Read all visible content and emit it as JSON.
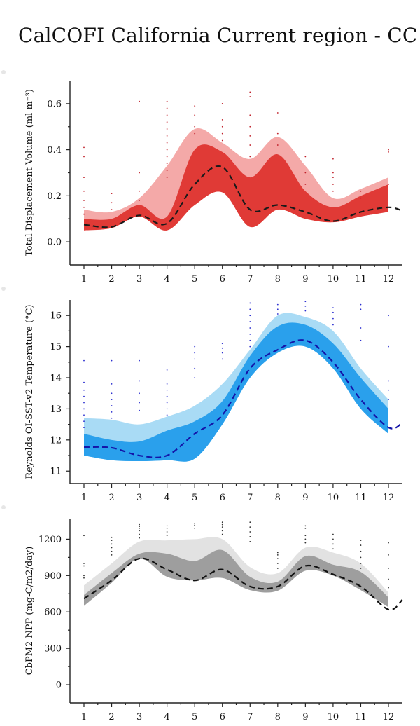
{
  "title": "CalCOFI California Current region - CC",
  "colors": {
    "tdv_outer": "#f4a9a8",
    "tdv_inner": "#e03a36",
    "tdv_points": "#c0202a",
    "tdv_line": "#1a1a1a",
    "sst_outer": "#a9dbf5",
    "sst_inner": "#2aa0ec",
    "sst_points": "#2b2fd0",
    "sst_line": "#1414a8",
    "npp_outer": "#e2e2e2",
    "npp_inner": "#9e9e9e",
    "npp_points": "#333333",
    "npp_line": "#111111"
  },
  "chart_data": [
    {
      "type": "area",
      "ylabel": "Total Displacement Volume (ml m⁻³)",
      "x": [
        1,
        2,
        3,
        4,
        5,
        6,
        7,
        8,
        9,
        10,
        11,
        12
      ],
      "xlim": [
        0.7,
        12.5
      ],
      "ylim": [
        -0.1,
        0.7
      ],
      "yticks": [
        0.0,
        0.2,
        0.4,
        0.6
      ],
      "ytick_labels": [
        "0.0",
        "0.2",
        "0.4",
        "0.6"
      ],
      "xtick_labels": [
        "1",
        "2",
        "3",
        "4",
        "5",
        "6",
        "7",
        "8",
        "9",
        "10",
        "11",
        "12"
      ],
      "grid": false,
      "line_style": "dashed",
      "mean": [
        0.075,
        0.065,
        0.115,
        0.08,
        0.25,
        0.325,
        0.14,
        0.16,
        0.13,
        0.09,
        0.13,
        0.15
      ],
      "mean_ext_x": 12.5,
      "mean_ext_y": 0.135,
      "inner_low": [
        0.05,
        0.06,
        0.11,
        0.05,
        0.16,
        0.215,
        0.065,
        0.14,
        0.1,
        0.085,
        0.11,
        0.13
      ],
      "inner_high": [
        0.1,
        0.1,
        0.16,
        0.11,
        0.4,
        0.39,
        0.28,
        0.38,
        0.22,
        0.15,
        0.2,
        0.25
      ],
      "outer_low": [
        0.05,
        0.06,
        0.11,
        0.05,
        0.16,
        0.215,
        0.065,
        0.14,
        0.1,
        0.085,
        0.11,
        0.13
      ],
      "outer_high": [
        0.14,
        0.13,
        0.19,
        0.33,
        0.49,
        0.43,
        0.36,
        0.455,
        0.33,
        0.19,
        0.23,
        0.28
      ],
      "points": [
        [
          1,
          0.41
        ],
        [
          1,
          0.37
        ],
        [
          1,
          0.28
        ],
        [
          1,
          0.22
        ],
        [
          1,
          0.18
        ],
        [
          1,
          0.15
        ],
        [
          1,
          0.12
        ],
        [
          2,
          0.21
        ],
        [
          2,
          0.17
        ],
        [
          2,
          0.14
        ],
        [
          3,
          0.61
        ],
        [
          3,
          0.3
        ],
        [
          3,
          0.22
        ],
        [
          3,
          0.18
        ],
        [
          4,
          0.61
        ],
        [
          4,
          0.58
        ],
        [
          4,
          0.55
        ],
        [
          4,
          0.52
        ],
        [
          4,
          0.49
        ],
        [
          4,
          0.46
        ],
        [
          4,
          0.43
        ],
        [
          4,
          0.4
        ],
        [
          4,
          0.37
        ],
        [
          4,
          0.34
        ],
        [
          4,
          0.31
        ],
        [
          4,
          0.28
        ],
        [
          5,
          0.59
        ],
        [
          5,
          0.55
        ],
        [
          5,
          0.5
        ],
        [
          5,
          0.47
        ],
        [
          6,
          0.6
        ],
        [
          6,
          0.53
        ],
        [
          6,
          0.5
        ],
        [
          6,
          0.47
        ],
        [
          6,
          0.44
        ],
        [
          7,
          0.65
        ],
        [
          7,
          0.63
        ],
        [
          7,
          0.55
        ],
        [
          7,
          0.5
        ],
        [
          7,
          0.46
        ],
        [
          7,
          0.42
        ],
        [
          7,
          0.37
        ],
        [
          8,
          0.56
        ],
        [
          8,
          0.47
        ],
        [
          8,
          0.42
        ],
        [
          9,
          0.37
        ],
        [
          9,
          0.3
        ],
        [
          9,
          0.25
        ],
        [
          10,
          0.36
        ],
        [
          10,
          0.3
        ],
        [
          10,
          0.28
        ],
        [
          10,
          0.25
        ],
        [
          10,
          0.22
        ],
        [
          11,
          0.22
        ],
        [
          11,
          0.19
        ],
        [
          12,
          0.4
        ],
        [
          12,
          0.39
        ],
        [
          12,
          0.25
        ]
      ]
    },
    {
      "type": "area",
      "ylabel": "Reynolds OI-SST-v2 Temperature (°C)",
      "x": [
        1,
        2,
        3,
        4,
        5,
        6,
        7,
        8,
        9,
        10,
        11,
        12
      ],
      "xlim": [
        0.7,
        12.5
      ],
      "ylim": [
        10.6,
        16.5
      ],
      "yticks": [
        11,
        12,
        13,
        14,
        15,
        16
      ],
      "ytick_labels": [
        "11",
        "12",
        "13",
        "14",
        "15",
        "16"
      ],
      "xtick_labels": [
        "1",
        "2",
        "3",
        "4",
        "5",
        "6",
        "7",
        "8",
        "9",
        "10",
        "11",
        "12"
      ],
      "grid": false,
      "line_style": "dashed",
      "mean": [
        11.77,
        11.75,
        11.5,
        11.5,
        12.2,
        12.8,
        14.3,
        14.9,
        15.2,
        14.5,
        13.3,
        12.4
      ],
      "mean_ext_x": 12.5,
      "mean_ext_y": 12.55,
      "inner_low": [
        11.5,
        11.35,
        11.32,
        11.35,
        11.4,
        12.5,
        14.0,
        14.8,
        15.0,
        14.3,
        13.0,
        12.2
      ],
      "inner_high": [
        12.2,
        12.0,
        11.95,
        12.3,
        12.6,
        13.25,
        14.7,
        15.65,
        15.7,
        15.1,
        14.0,
        13.0
      ],
      "outer_low": [
        11.5,
        11.35,
        11.32,
        11.35,
        11.4,
        12.5,
        14.0,
        14.8,
        15.0,
        14.3,
        13.0,
        12.2
      ],
      "outer_high": [
        12.7,
        12.65,
        12.5,
        12.75,
        13.1,
        13.8,
        14.9,
        16.0,
        15.95,
        15.5,
        14.3,
        13.3
      ],
      "points": [
        [
          1,
          14.55
        ],
        [
          1,
          13.85
        ],
        [
          1,
          13.6
        ],
        [
          1,
          13.4
        ],
        [
          1,
          13.2
        ],
        [
          1,
          13.0
        ],
        [
          1,
          12.8
        ],
        [
          1,
          12.6
        ],
        [
          1,
          12.4
        ],
        [
          2,
          14.55
        ],
        [
          2,
          13.8
        ],
        [
          2,
          13.5
        ],
        [
          2,
          13.3
        ],
        [
          2,
          13.1
        ],
        [
          2,
          12.9
        ],
        [
          2,
          12.7
        ],
        [
          3,
          14.55
        ],
        [
          3,
          13.9
        ],
        [
          3,
          13.5
        ],
        [
          3,
          13.2
        ],
        [
          3,
          12.95
        ],
        [
          4,
          14.25
        ],
        [
          4,
          13.8
        ],
        [
          4,
          13.6
        ],
        [
          4,
          13.4
        ],
        [
          4,
          13.2
        ],
        [
          4,
          13.0
        ],
        [
          4,
          12.8
        ],
        [
          5,
          15.0
        ],
        [
          5,
          14.8
        ],
        [
          5,
          14.6
        ],
        [
          5,
          14.3
        ],
        [
          5,
          14.0
        ],
        [
          6,
          15.1
        ],
        [
          6,
          14.95
        ],
        [
          6,
          14.8
        ],
        [
          6,
          14.6
        ],
        [
          7,
          16.4
        ],
        [
          7,
          16.2
        ],
        [
          7,
          16.0
        ],
        [
          7,
          15.8
        ],
        [
          7,
          15.6
        ],
        [
          7,
          15.4
        ],
        [
          7,
          15.2
        ],
        [
          7,
          15.0
        ],
        [
          8,
          16.35
        ],
        [
          8,
          16.2
        ],
        [
          8,
          16.05
        ],
        [
          9,
          16.45
        ],
        [
          9,
          16.3
        ],
        [
          9,
          16.15
        ],
        [
          10,
          16.25
        ],
        [
          10,
          16.1
        ],
        [
          10,
          15.9
        ],
        [
          10,
          15.7
        ],
        [
          11,
          16.35
        ],
        [
          11,
          16.2
        ],
        [
          11,
          15.6
        ],
        [
          11,
          15.2
        ],
        [
          12,
          16.0
        ],
        [
          12,
          15.0
        ],
        [
          12,
          13.9
        ],
        [
          12,
          13.6
        ],
        [
          12,
          13.3
        ]
      ]
    },
    {
      "type": "area",
      "ylabel": "CbPM2 NPP (mg-C/m2/day)",
      "x": [
        1,
        2,
        3,
        4,
        5,
        6,
        7,
        8,
        9,
        10,
        11,
        12
      ],
      "xlim": [
        0.7,
        12.5
      ],
      "ylim": [
        -150,
        1370
      ],
      "yticks": [
        0,
        300,
        600,
        900,
        1200
      ],
      "ytick_labels": [
        "0",
        "300",
        "600",
        "900",
        "1200"
      ],
      "xtick_labels": [
        "1",
        "2",
        "3",
        "4",
        "5",
        "6",
        "7",
        "8",
        "9",
        "10",
        "11",
        "12"
      ],
      "grid": false,
      "line_style": "dashed",
      "mean": [
        710,
        860,
        1040,
        950,
        860,
        950,
        810,
        810,
        980,
        910,
        810,
        620
      ],
      "mean_ext_x": 12.5,
      "mean_ext_y": 700,
      "inner_low": [
        650,
        840,
        1040,
        890,
        860,
        880,
        780,
        775,
        940,
        900,
        780,
        640
      ],
      "inner_high": [
        740,
        920,
        1080,
        1080,
        1020,
        1110,
        890,
        850,
        1060,
        990,
        930,
        720
      ],
      "outer_low": [
        650,
        840,
        1040,
        890,
        860,
        880,
        780,
        775,
        940,
        900,
        780,
        640
      ],
      "outer_high": [
        820,
        1000,
        1180,
        1190,
        1200,
        1200,
        970,
        920,
        1130,
        1090,
        1000,
        760
      ],
      "points": [
        [
          1,
          1230
        ],
        [
          1,
          1000
        ],
        [
          1,
          980
        ],
        [
          1,
          900
        ],
        [
          1,
          880
        ],
        [
          2,
          1215
        ],
        [
          2,
          1190
        ],
        [
          2,
          1160
        ],
        [
          2,
          1130
        ],
        [
          2,
          1100
        ],
        [
          2,
          1070
        ],
        [
          3,
          1320
        ],
        [
          3,
          1305
        ],
        [
          3,
          1290
        ],
        [
          3,
          1270
        ],
        [
          3,
          1240
        ],
        [
          3,
          1210
        ],
        [
          4,
          1310
        ],
        [
          4,
          1290
        ],
        [
          4,
          1260
        ],
        [
          4,
          1230
        ],
        [
          5,
          1330
        ],
        [
          5,
          1315
        ],
        [
          5,
          1290
        ],
        [
          6,
          1340
        ],
        [
          6,
          1320
        ],
        [
          6,
          1300
        ],
        [
          6,
          1270
        ],
        [
          6,
          1240
        ],
        [
          7,
          1340
        ],
        [
          7,
          1300
        ],
        [
          7,
          1260
        ],
        [
          7,
          1220
        ],
        [
          7,
          1180
        ],
        [
          8,
          1090
        ],
        [
          8,
          1070
        ],
        [
          8,
          1040
        ],
        [
          8,
          1000
        ],
        [
          8,
          960
        ],
        [
          9,
          1310
        ],
        [
          9,
          1290
        ],
        [
          9,
          1230
        ],
        [
          9,
          1200
        ],
        [
          9,
          1170
        ],
        [
          10,
          1240
        ],
        [
          10,
          1200
        ],
        [
          10,
          1160
        ],
        [
          10,
          1120
        ],
        [
          11,
          1190
        ],
        [
          11,
          1150
        ],
        [
          11,
          1100
        ],
        [
          11,
          1050
        ],
        [
          11,
          1000
        ],
        [
          11,
          960
        ],
        [
          12,
          1170
        ],
        [
          12,
          1070
        ],
        [
          12,
          960
        ],
        [
          12,
          870
        ],
        [
          12,
          800
        ]
      ]
    }
  ]
}
